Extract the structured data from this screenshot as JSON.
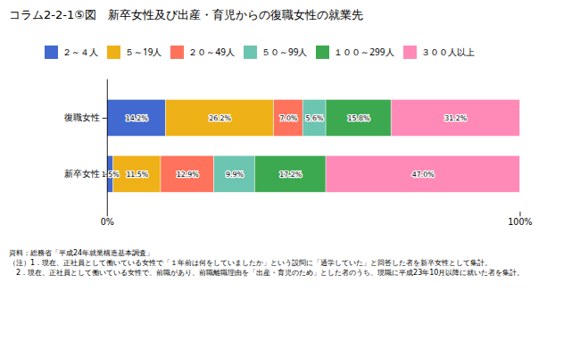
{
  "chart_data": {
    "type": "bar",
    "orientation": "horizontal",
    "stacked": true,
    "data_labels": true,
    "title": "コラム2-2-1⑤図　新卒女性及び出産・育児からの復職女性の就業先",
    "categories": [
      "復職女性",
      "新卒女性"
    ],
    "series": [
      {
        "name": "２～４人",
        "values": [
          14.2,
          1.5
        ],
        "value_labels": [
          "14.2%",
          "1.5%"
        ]
      },
      {
        "name": "５～19人",
        "values": [
          26.2,
          11.5
        ],
        "value_labels": [
          "26.2%",
          "11.5%"
        ]
      },
      {
        "name": "２０～49人",
        "values": [
          7.0,
          12.9
        ],
        "value_labels": [
          "7.0%",
          "12.9%"
        ]
      },
      {
        "name": "５０～99人",
        "values": [
          5.6,
          9.9
        ],
        "value_labels": [
          "5.6%",
          "9.9%"
        ]
      },
      {
        "name": "１００～299人",
        "values": [
          15.8,
          17.2
        ],
        "value_labels": [
          "15.8%",
          "17.2%"
        ]
      },
      {
        "name": "３００人以上",
        "values": [
          31.2,
          47.0
        ],
        "value_labels": [
          "31.2%",
          "47.0%"
        ]
      }
    ],
    "xlim": [
      0,
      100
    ],
    "xticks": [
      {
        "value": 0,
        "label": "0%"
      },
      {
        "value": 100,
        "label": "100%"
      }
    ],
    "annotations": [
      "資料：総務省「平成24年就業構造基本調査」",
      "（注）1．現在、正社員として働いている女性で「１年前は何をしていましたか」という設問に「通学していた」と回答した者を新卒女性として集計。",
      "　2．現在、正社員として働いている女性で、前職があり、前職離職理由を「出産・育児のため」とした者のうち、現職に平成23年10月以降に就いた者を集計。"
    ]
  }
}
